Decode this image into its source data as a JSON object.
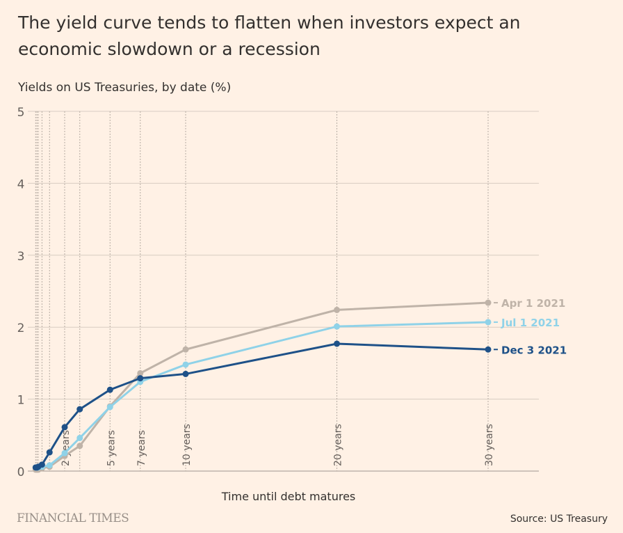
{
  "chart_data": {
    "type": "line",
    "title": "The yield curve tends to flatten when investors expect an economic slowdown or a recession",
    "subtitle": "Yields on US Treasuries, by date (%)",
    "xlabel": "Time until debt matures",
    "ylabel": "",
    "ylim": [
      0,
      5
    ],
    "xlim": [
      0,
      30
    ],
    "yticks": [
      "0",
      "1",
      "2",
      "3",
      "4",
      "5"
    ],
    "x": [
      0.083,
      0.167,
      0.25,
      0.5,
      1,
      2,
      3,
      5,
      7,
      10,
      20,
      30
    ],
    "xtick_labels": [
      {
        "x": 2,
        "label": "2 years"
      },
      {
        "x": 5,
        "label": "5 years"
      },
      {
        "x": 7,
        "label": "7 years"
      },
      {
        "x": 10,
        "label": "10 years"
      },
      {
        "x": 20,
        "label": "20 years"
      },
      {
        "x": 30,
        "label": "30 years"
      }
    ],
    "grid": true,
    "series": [
      {
        "name": "Apr 1 2021",
        "color": "#BFB3A8",
        "values": [
          0.02,
          0.02,
          0.02,
          0.04,
          0.06,
          0.21,
          0.35,
          0.9,
          1.36,
          1.69,
          2.24,
          2.34
        ]
      },
      {
        "name": "Jul 1 2021",
        "color": "#8FD2E8",
        "values": [
          0.05,
          0.05,
          0.05,
          0.06,
          0.08,
          0.25,
          0.46,
          0.89,
          1.24,
          1.48,
          2.01,
          2.07
        ]
      },
      {
        "name": "Dec 3 2021",
        "color": "#1E5188",
        "values": [
          0.05,
          0.05,
          0.06,
          0.09,
          0.26,
          0.61,
          0.86,
          1.13,
          1.29,
          1.35,
          1.77,
          1.69
        ]
      }
    ],
    "legend": "inline-right"
  },
  "footer": {
    "logo": "FINANCIAL TIMES",
    "source": "Source: US Treasury"
  }
}
